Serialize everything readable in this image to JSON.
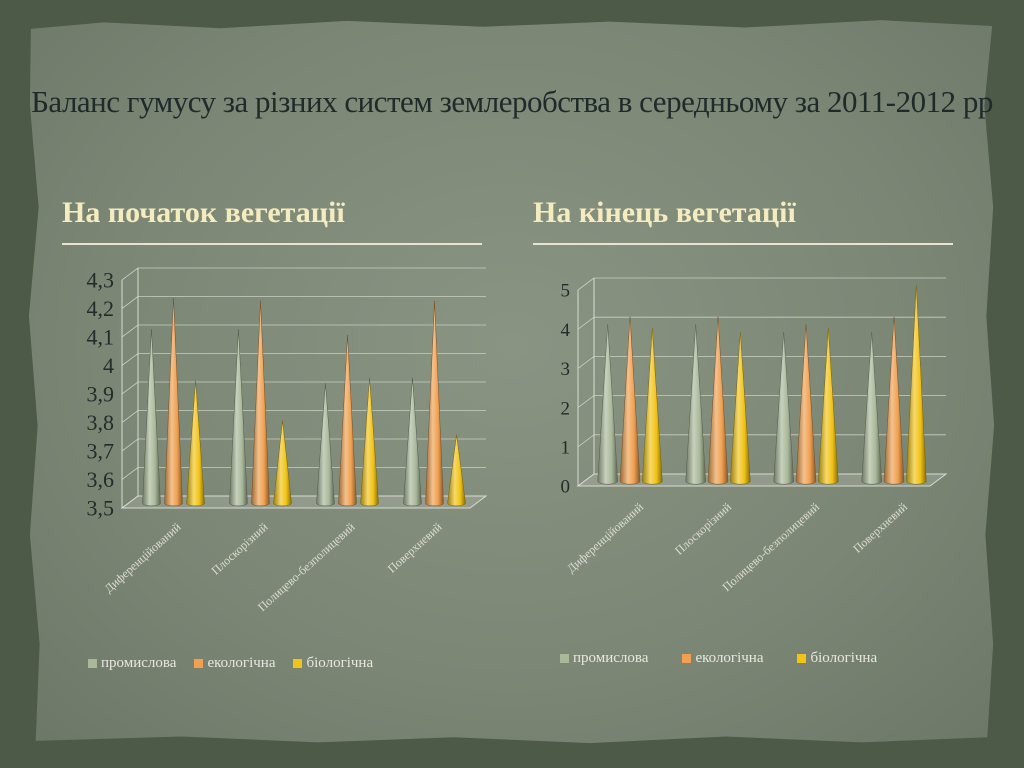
{
  "slide": {
    "title": "Баланс гумусу за різних систем землеробства в середньому за 2011-2012 рр"
  },
  "left": {
    "subtitle": "На початок вегетації"
  },
  "right": {
    "subtitle": "На кінець вегетації"
  },
  "colors": {
    "промислова": "#a9b899",
    "екологічна": "#f0a050",
    "біологічна": "#f2c418"
  },
  "chart_data": [
    {
      "type": "bar",
      "style": "3d-cone",
      "title": "",
      "xlabel": "",
      "ylabel": "",
      "categories": [
        "Диференційований",
        "Плоскорізний",
        "Полицево-безполицевий",
        "Поверхневий"
      ],
      "series": [
        {
          "name": "промислова",
          "values": [
            4.11,
            4.11,
            3.92,
            3.94
          ]
        },
        {
          "name": "екологічна",
          "values": [
            4.22,
            4.21,
            4.09,
            4.21
          ]
        },
        {
          "name": "біологічна",
          "values": [
            3.93,
            3.79,
            3.94,
            3.74
          ]
        }
      ],
      "ylim": [
        3.5,
        4.3
      ],
      "yticks": [
        "3,5",
        "3,6",
        "3,7",
        "3,8",
        "3,9",
        "4",
        "4,1",
        "4,2",
        "4,3"
      ],
      "grid": true,
      "legend_position": "bottom"
    },
    {
      "type": "bar",
      "style": "3d-cone",
      "title": "",
      "xlabel": "",
      "ylabel": "",
      "categories": [
        "Диференційований",
        "Плоскорізний",
        "Полицево-безполицевий",
        "Поверхневий"
      ],
      "series": [
        {
          "name": "промислова",
          "values": [
            4.0,
            4.0,
            3.8,
            3.8
          ]
        },
        {
          "name": "екологічна",
          "values": [
            4.2,
            4.2,
            4.0,
            4.2
          ]
        },
        {
          "name": "біологічна",
          "values": [
            3.9,
            3.8,
            3.9,
            5.0
          ]
        }
      ],
      "ylim": [
        0,
        5
      ],
      "yticks": [
        "0",
        "1",
        "2",
        "3",
        "4",
        "5"
      ],
      "grid": true,
      "legend_position": "bottom"
    }
  ]
}
